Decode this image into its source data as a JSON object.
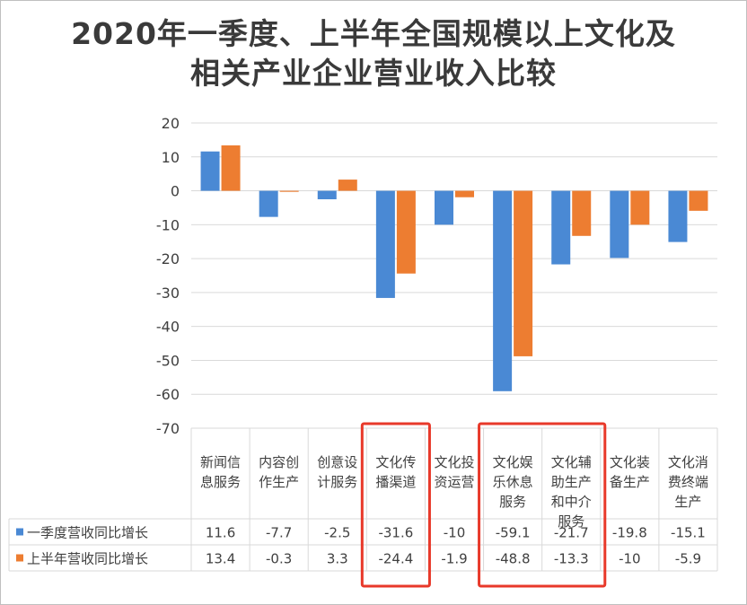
{
  "chart_data": {
    "type": "bar",
    "title_line1": "2020年一季度、上半年全国规模以上文化及",
    "title_line2": "相关产业企业营业收入比较",
    "categories": [
      [
        "新闻信",
        "息服务"
      ],
      [
        "内容创",
        "作生产"
      ],
      [
        "创意设",
        "计服务"
      ],
      [
        "文化传",
        "播渠道"
      ],
      [
        "文化投",
        "资运营"
      ],
      [
        "文化娱",
        "乐休息",
        "服务"
      ],
      [
        "文化辅",
        "助生产",
        "和中介",
        "服务"
      ],
      [
        "文化装",
        "备生产"
      ],
      [
        "文化消",
        "费终端",
        "生产"
      ]
    ],
    "series": [
      {
        "name": "一季度营收同比增长",
        "color": "#4a89d4",
        "values": [
          11.6,
          -7.7,
          -2.5,
          -31.6,
          -10,
          -59.1,
          -21.7,
          -19.8,
          -15.1
        ]
      },
      {
        "name": "上半年营收同比增长",
        "color": "#ed7d31",
        "values": [
          13.4,
          -0.3,
          3.3,
          -24.4,
          -1.9,
          -48.8,
          -13.3,
          -10,
          -5.9
        ]
      }
    ],
    "value_labels": [
      [
        "11.6",
        "-7.7",
        "-2.5",
        "-31.6",
        "-10",
        "-59.1",
        "-21.7",
        "-19.8",
        "-15.1"
      ],
      [
        "13.4",
        "-0.3",
        "3.3",
        "-24.4",
        "-1.9",
        "-48.8",
        "-13.3",
        "-10",
        "-5.9"
      ]
    ],
    "ylim": [
      -70,
      20
    ],
    "yticks": [
      20,
      10,
      0,
      -10,
      -20,
      -30,
      -40,
      -50,
      -60,
      -70
    ],
    "highlighted_categories": [
      3,
      5,
      6
    ],
    "highlight_color": "#e8392a"
  }
}
